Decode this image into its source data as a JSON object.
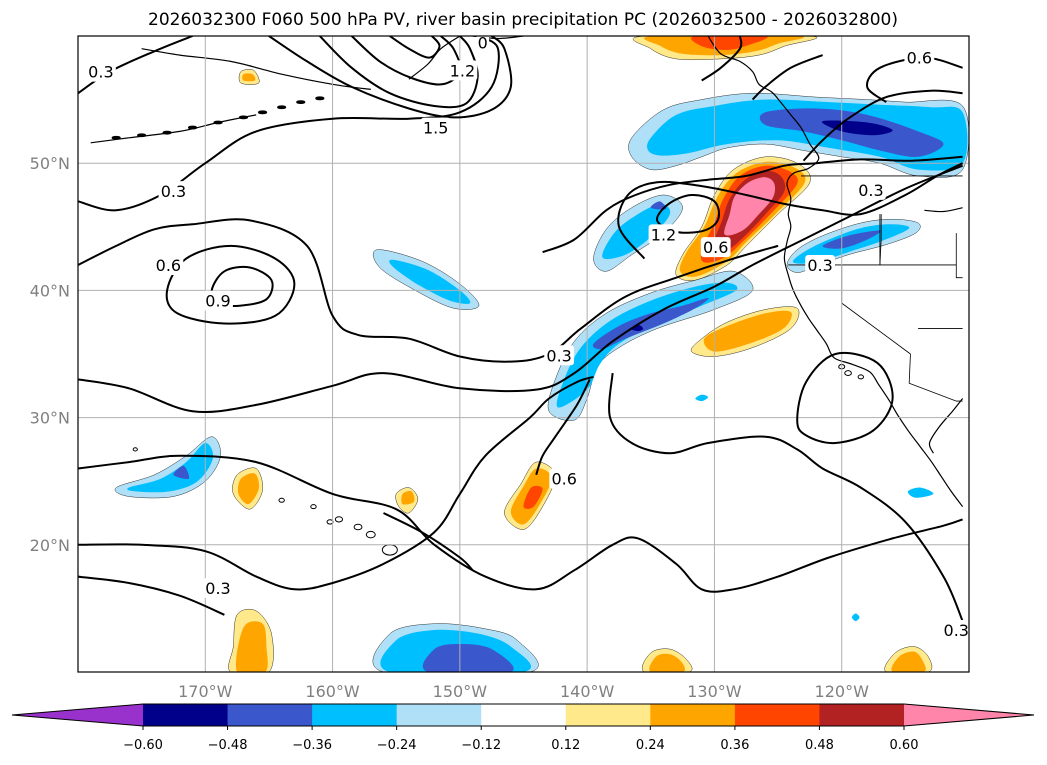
{
  "chart_data": {
    "type": "heatmap",
    "title": "2026032300 F060 500 hPa PV, river basin precipitation PC (2026032500 - 2026032800)",
    "lon_range": [
      -180,
      -110
    ],
    "lat_range": [
      10,
      60
    ],
    "grid": true,
    "x_ticks": [
      {
        "value": -170,
        "label": "170°W"
      },
      {
        "value": -160,
        "label": "160°W"
      },
      {
        "value": -150,
        "label": "150°W"
      },
      {
        "value": -140,
        "label": "140°W"
      },
      {
        "value": -130,
        "label": "130°W"
      },
      {
        "value": -120,
        "label": "120°W"
      }
    ],
    "y_ticks": [
      {
        "value": 20,
        "label": "20°N"
      },
      {
        "value": 30,
        "label": "30°N"
      },
      {
        "value": 40,
        "label": "40°N"
      },
      {
        "value": 50,
        "label": "50°N"
      }
    ],
    "colorbar": {
      "levels": [
        -0.72,
        -0.6,
        -0.48,
        -0.36,
        -0.24,
        -0.12,
        0.12,
        0.24,
        0.36,
        0.48,
        0.6,
        0.72
      ],
      "tick_labels": [
        "−0.60",
        "−0.48",
        "−0.36",
        "−0.24",
        "−0.12",
        "0.12",
        "0.24",
        "0.36",
        "0.48",
        "0.60"
      ],
      "tick_values": [
        -0.6,
        -0.48,
        -0.36,
        -0.24,
        -0.12,
        0.12,
        0.24,
        0.36,
        0.48,
        0.6
      ],
      "colors": [
        "#9932cc",
        "#00008b",
        "#3a57cc",
        "#00bfff",
        "#b0e0f8",
        "#ffffff",
        "#ffe98a",
        "#ffa500",
        "#ff4500",
        "#b22222",
        "#ff85aa"
      ],
      "extend": "both"
    },
    "contour_labels": [
      {
        "text": "0.3",
        "lon": -178.2,
        "lat": 57.2
      },
      {
        "text": "0.3",
        "lon": -172.5,
        "lat": 47.8
      },
      {
        "text": "0.6",
        "lon": -172.9,
        "lat": 42.0
      },
      {
        "text": "0.9",
        "lon": -169.0,
        "lat": 39.2
      },
      {
        "text": "1.2",
        "lon": -149.8,
        "lat": 57.3
      },
      {
        "text": "1.5",
        "lon": -151.9,
        "lat": 52.8
      },
      {
        "text": "0",
        "lon": -148.2,
        "lat": 59.5
      },
      {
        "text": "0.3",
        "lon": -142.2,
        "lat": 34.9
      },
      {
        "text": "0.6",
        "lon": -141.8,
        "lat": 25.2
      },
      {
        "text": "0.3",
        "lon": -169.0,
        "lat": 16.6
      },
      {
        "text": "0.3",
        "lon": -111.0,
        "lat": 13.3
      },
      {
        "text": "0.6",
        "lon": -113.9,
        "lat": 58.3
      },
      {
        "text": "0.3",
        "lon": -117.7,
        "lat": 47.9
      },
      {
        "text": "0.3",
        "lon": -121.7,
        "lat": 42.0
      },
      {
        "text": "1.2",
        "lon": -134.0,
        "lat": 44.4
      },
      {
        "text": "0.6",
        "lon": -129.9,
        "lat": 43.4
      }
    ],
    "precip_pc_regions": [
      {
        "value": -0.3,
        "lon": -128,
        "lat": 53.5
      },
      {
        "value": -0.5,
        "lon": -123,
        "lat": 53.6
      },
      {
        "value": -0.3,
        "lon": -123,
        "lat": 44.5
      },
      {
        "value": -0.4,
        "lon": -134,
        "lat": 37.0
      },
      {
        "value": -0.25,
        "lon": -152,
        "lat": 41.5
      },
      {
        "value": -0.3,
        "lon": -171,
        "lat": 24.5
      },
      {
        "value": -0.4,
        "lon": -151,
        "lat": 12.5
      },
      {
        "value": 0.65,
        "lon": -129,
        "lat": 46.5
      },
      {
        "value": 0.3,
        "lon": -128,
        "lat": 59.0
      },
      {
        "value": 0.3,
        "lon": -129,
        "lat": 36.5
      },
      {
        "value": 0.4,
        "lon": -144.5,
        "lat": 24.0
      },
      {
        "value": 0.3,
        "lon": -167,
        "lat": 24.5
      },
      {
        "value": 0.3,
        "lon": -166,
        "lat": 11.5
      },
      {
        "value": 0.3,
        "lon": -133,
        "lat": 10.5
      },
      {
        "value": 0.3,
        "lon": -114.5,
        "lat": 11.0
      }
    ]
  }
}
